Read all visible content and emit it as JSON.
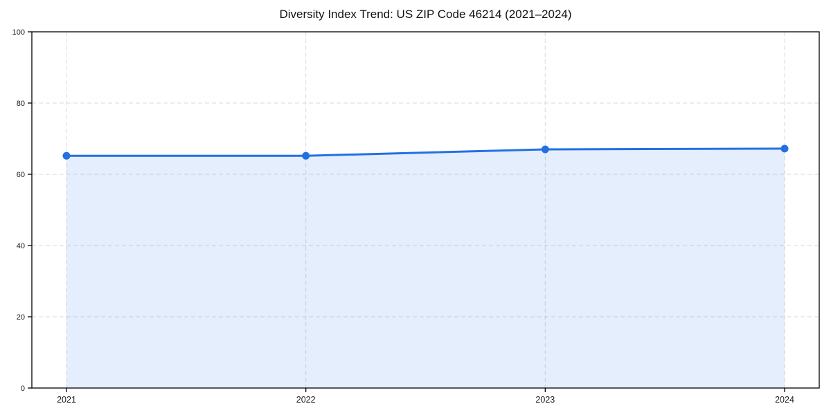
{
  "chart_data": {
    "type": "area",
    "title": "Diversity Index Trend: US ZIP Code 46214 (2021–2024)",
    "categories": [
      "2021",
      "2022",
      "2023",
      "2024"
    ],
    "series": [
      {
        "name": "Diversity Index",
        "values": [
          65.2,
          65.2,
          67.0,
          67.2
        ]
      }
    ],
    "xlabel": "",
    "ylabel": "",
    "ylim": [
      0,
      100
    ],
    "yticks": [
      0,
      20,
      40,
      60,
      80,
      100
    ],
    "grid": "dashed horizontal at y ticks and vertical at each year",
    "legend_position": "none",
    "line_color": "#2270e4",
    "marker_color": "#2270e4",
    "fill_color": "#2270e4",
    "fill_opacity": 0.12,
    "grid_color": "#d9d9d9",
    "axis_color": "#000000",
    "tick_label_color": "#1a1a1a",
    "background": "#ffffff"
  }
}
